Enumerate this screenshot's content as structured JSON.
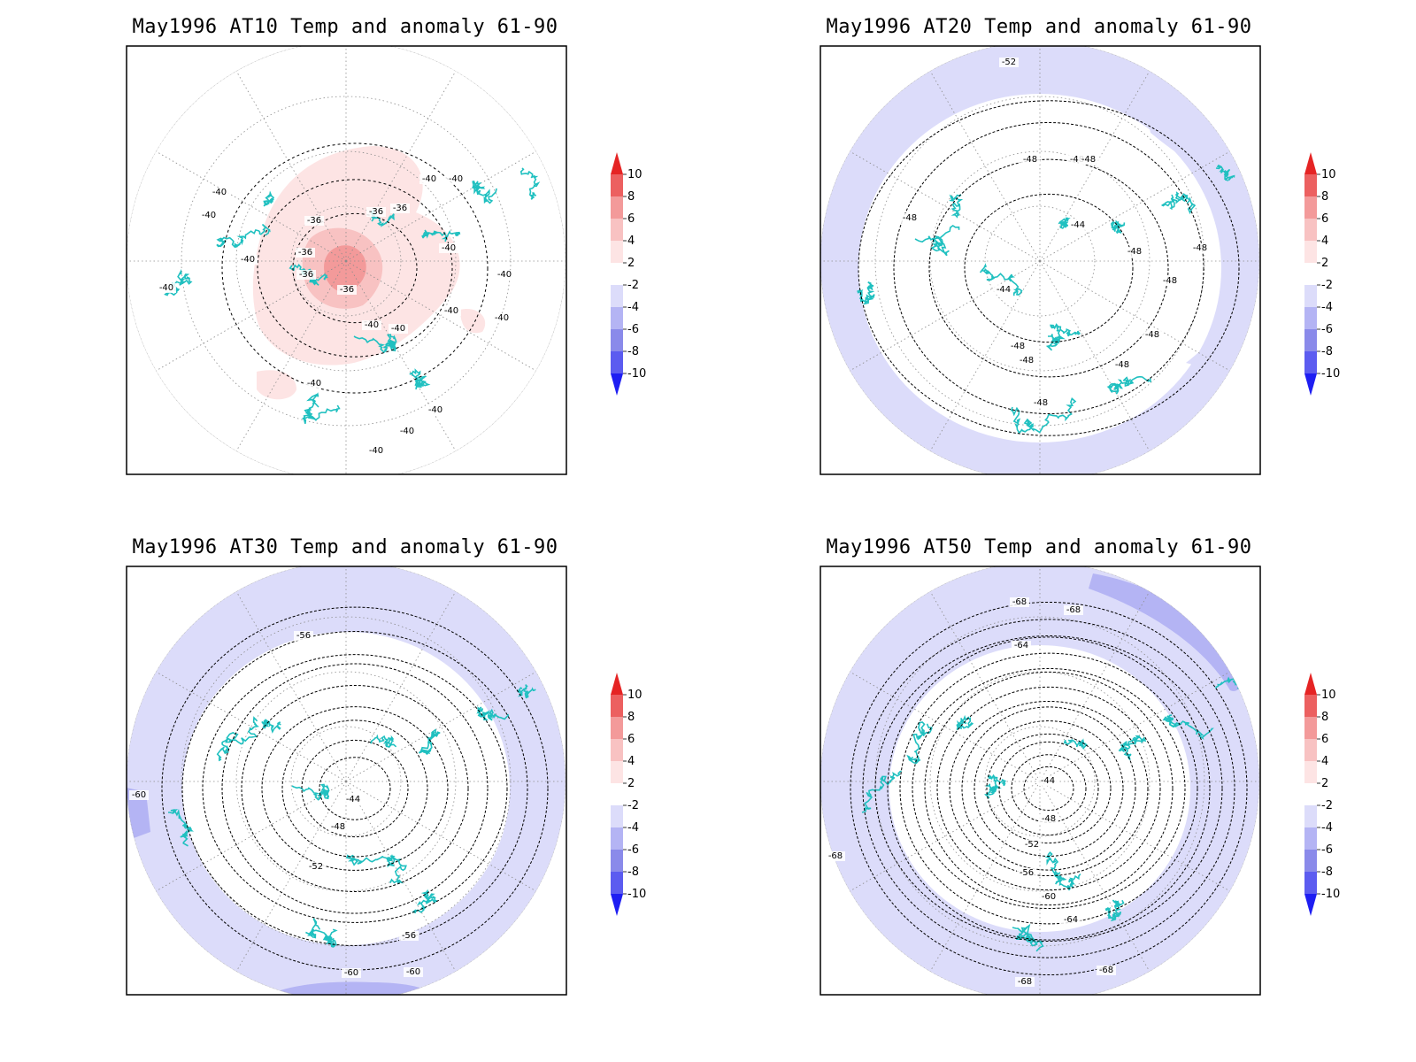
{
  "colors": {
    "coast": "#20c0c0",
    "contour": "#000000",
    "grid": "#8c8c8c",
    "frame": "#000000",
    "pos": [
      "#fde4e4",
      "#f8c2c2",
      "#f39a9a",
      "#ec6060",
      "#e52424"
    ],
    "neg": [
      "#dcdcfa",
      "#b4b4f4",
      "#8a8aea",
      "#5c5cf0",
      "#1e1ef2"
    ]
  },
  "colorbar": {
    "levels": [
      "10",
      "8",
      "6",
      "4",
      "2",
      "-2",
      "-4",
      "-6",
      "-8",
      "-10"
    ]
  },
  "panels": [
    {
      "id": "AT10",
      "title": "May1996 AT10 Temp and anomaly 61-90",
      "anomaly_sign": "positive",
      "contour_labels": [
        "-40",
        "-40",
        "-40",
        "-40",
        "-40",
        "-36",
        "-36",
        "-36",
        "-36",
        "-36",
        "-36",
        "-40",
        "-40",
        "-40",
        "-40",
        "-40",
        "-40",
        "-40",
        "-40",
        "-40",
        "-40",
        "-40"
      ]
    },
    {
      "id": "AT20",
      "title": "May1996 AT20 Temp and anomaly 61-90",
      "anomaly_sign": "negative",
      "contour_labels": [
        "-52",
        "-48",
        "-48",
        "-48",
        "-44",
        "-44",
        "-48",
        "-48",
        "-48",
        "-48",
        "-48",
        "-48",
        "-48",
        "-48",
        "-48"
      ]
    },
    {
      "id": "AT30",
      "title": "May1996 AT30 Temp and anomaly 61-90",
      "anomaly_sign": "negative",
      "contour_labels": [
        "-56",
        "-60",
        "-44",
        "-48",
        "-52",
        "-56",
        "-60",
        "-60"
      ]
    },
    {
      "id": "AT50",
      "title": "May1996 AT50 Temp and anomaly 61-90",
      "anomaly_sign": "negative",
      "contour_labels": [
        "-68",
        "-68",
        "-64",
        "-44",
        "-48",
        "-52",
        "-56",
        "-60",
        "-64",
        "-68",
        "-68",
        "-68"
      ]
    }
  ]
}
